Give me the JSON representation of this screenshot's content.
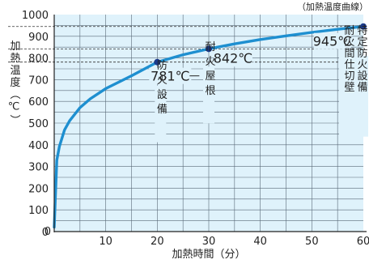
{
  "chart_data": {
    "type": "line",
    "title": "（加熱温度曲線）",
    "xlabel": "加熱時間（分）",
    "ylabel": "加熱温度（℃）",
    "xlim": [
      0,
      60
    ],
    "ylim": [
      0,
      1000
    ],
    "x_ticks": [
      10,
      20,
      30,
      40,
      50,
      60
    ],
    "y_ticks": [
      0,
      100,
      200,
      300,
      400,
      500,
      600,
      700,
      800,
      900,
      1000
    ],
    "grid": true,
    "series": [
      {
        "color": "#1e8fd0",
        "x": [
          0,
          0.5,
          1,
          2,
          3,
          5,
          7,
          10,
          15,
          20,
          25,
          30,
          35,
          40,
          45,
          50,
          55,
          60
        ],
        "y": [
          20,
          329,
          392,
          468,
          511,
          571,
          612,
          659,
          718,
          781,
          815,
          842,
          865,
          885,
          902,
          918,
          932,
          945
        ]
      }
    ],
    "annotations": [
      {
        "x": 20,
        "y": 781,
        "value_label": "781℃",
        "text": "防火設備"
      },
      {
        "x": 30,
        "y": 842,
        "value_label": "842℃",
        "text": "耐火屋根"
      },
      {
        "x": 60,
        "y": 945,
        "value_label": "945℃",
        "text": "特定防火設備",
        "text2": "耐火間仕切壁"
      }
    ]
  }
}
